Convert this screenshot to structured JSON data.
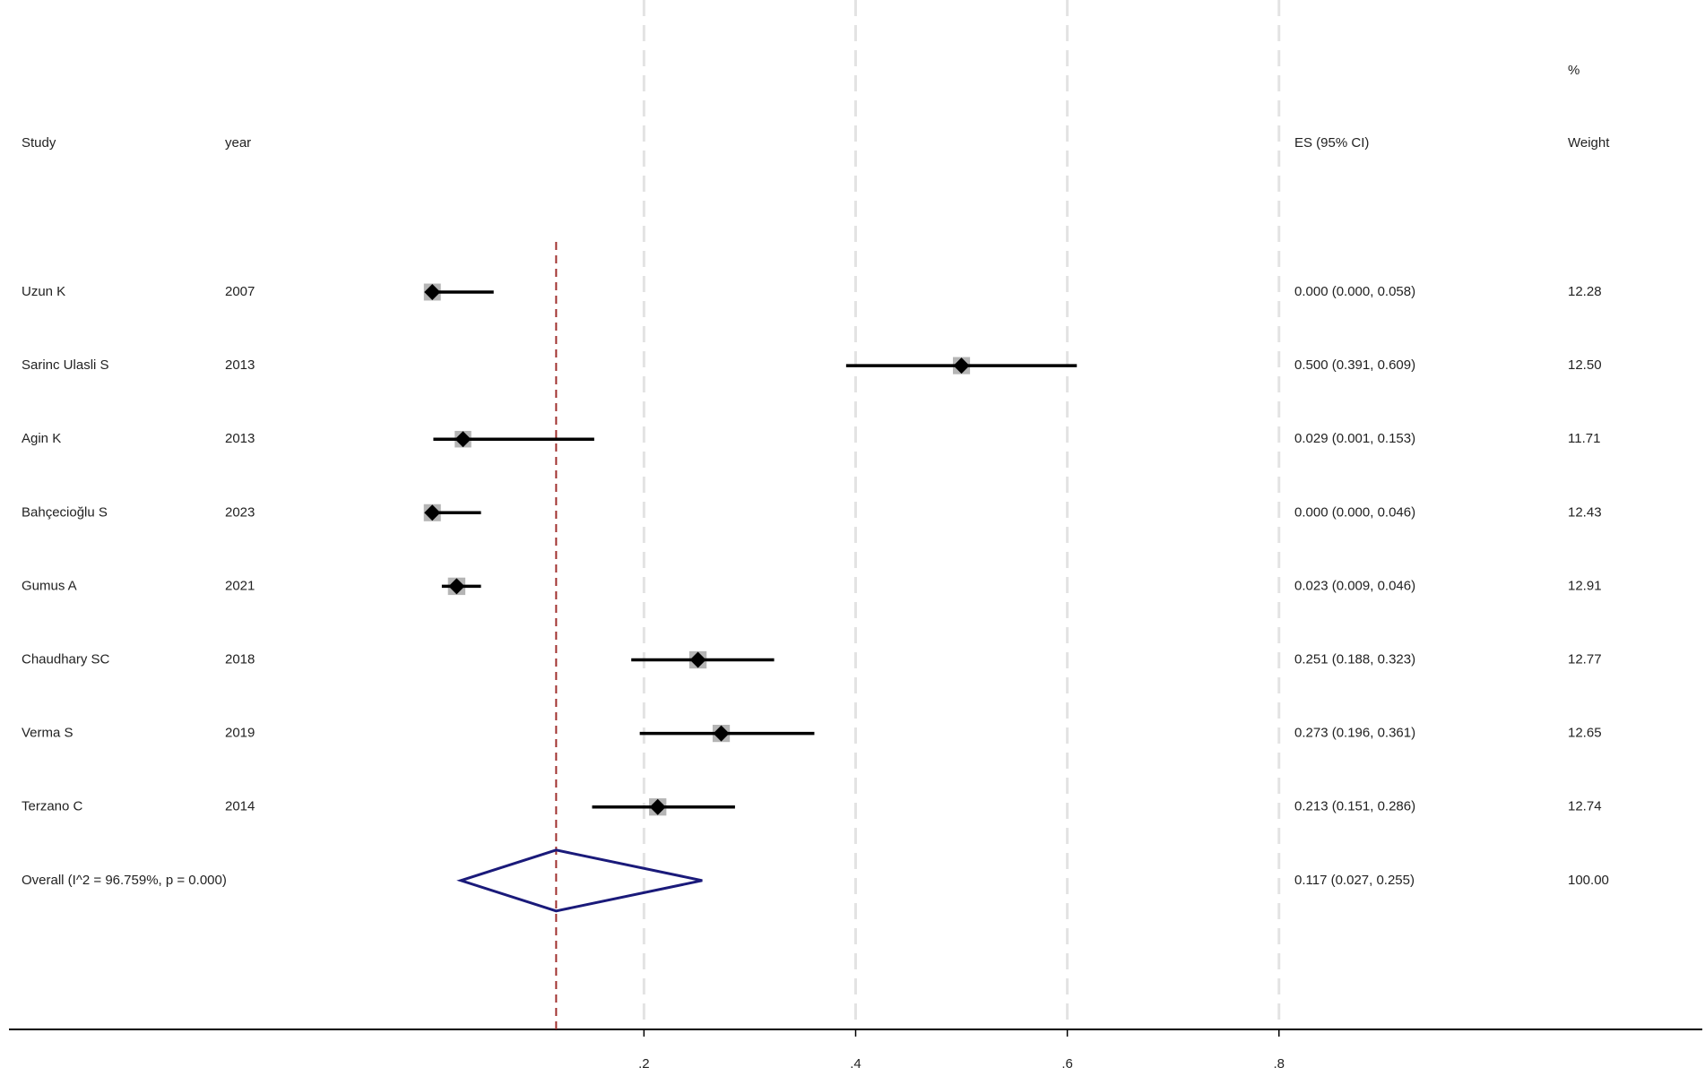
{
  "chart_data": {
    "type": "forest",
    "headers": {
      "study": "Study",
      "year": "year",
      "es": "ES (95% CI)",
      "weight_top": "%",
      "weight": "Weight"
    },
    "studies": [
      "Uzun K",
      "Sarinc Ulasli S",
      "Agin K",
      "Bahçecioğlu S",
      "Gumus A",
      "Chaudhary SC",
      "Verma S",
      "Terzano C"
    ],
    "years": [
      "2007",
      "2013",
      "2013",
      "2023",
      "2021",
      "2018",
      "2019",
      "2014"
    ],
    "es": [
      0.0,
      0.5,
      0.029,
      0.0,
      0.023,
      0.251,
      0.273,
      0.213
    ],
    "lo": [
      0.0,
      0.391,
      0.001,
      0.0,
      0.009,
      0.188,
      0.196,
      0.151
    ],
    "hi": [
      0.058,
      0.609,
      0.153,
      0.046,
      0.046,
      0.323,
      0.361,
      0.286
    ],
    "es_labels": [
      "0.000 (0.000, 0.058)",
      "0.500 (0.391, 0.609)",
      "0.029 (0.001, 0.153)",
      "0.000 (0.000, 0.046)",
      "0.023 (0.009, 0.046)",
      "0.251 (0.188, 0.323)",
      "0.273 (0.196, 0.361)",
      "0.213 (0.151, 0.286)"
    ],
    "weights": [
      12.28,
      12.5,
      11.71,
      12.43,
      12.91,
      12.77,
      12.65,
      12.74
    ],
    "weight_labels": [
      "12.28",
      "12.50",
      "11.71",
      "12.43",
      "12.91",
      "12.77",
      "12.65",
      "12.74"
    ],
    "overall": {
      "label": "Overall  (I^2 = 96.759%, p = 0.000)",
      "es": 0.117,
      "lo": 0.027,
      "hi": 0.255,
      "es_label": "0.117 (0.027, 0.255)",
      "weight": 100,
      "weight_label": "100.00",
      "color": "#1a1a7a",
      "line_color": "#a0302e"
    },
    "xlim": [
      -0.4,
      1.2
    ],
    "xticks": [
      {
        "value": 0.2,
        "label": ".2"
      },
      {
        "value": 0.4,
        "label": ".4"
      },
      {
        "value": 0.6,
        "label": ".6"
      },
      {
        "value": 0.8,
        "label": ".8"
      }
    ],
    "grid": true
  }
}
